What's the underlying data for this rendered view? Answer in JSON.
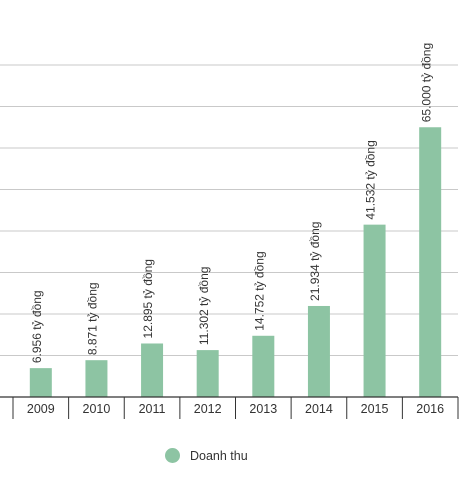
{
  "chart_data": {
    "type": "bar",
    "categories": [
      "2009",
      "2010",
      "2011",
      "2012",
      "2013",
      "2014",
      "2015",
      "2016"
    ],
    "series": [
      {
        "name": "Doanh thu",
        "values": [
          6956,
          8871,
          12895,
          11302,
          14752,
          21934,
          41532,
          65000
        ],
        "labels": [
          "6.956 tỷ đồng",
          "8.871 tỷ đồng",
          "12.895 tỷ đồng",
          "11.302 tỷ đồng",
          "14.752 tỷ đồng",
          "21.934 tỷ đồng",
          "41.532 tỷ đồng",
          "65.000 tỷ đồng"
        ]
      }
    ],
    "ylim": [
      0,
      80000
    ],
    "grid": true,
    "legend": "bottom",
    "colors": {
      "bar": "#8dc4a3",
      "grid": "#c9c9c9",
      "axis": "#333333"
    }
  }
}
